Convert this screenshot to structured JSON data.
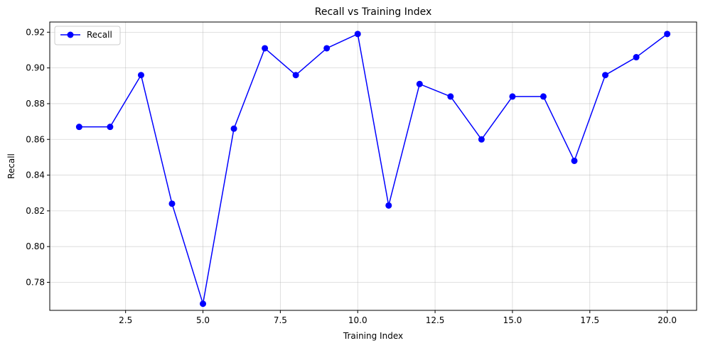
{
  "chart_data": {
    "type": "line",
    "title": "Recall vs Training Index",
    "xlabel": "Training Index",
    "ylabel": "Recall",
    "xlim": [
      0.05,
      20.95
    ],
    "ylim": [
      0.7643,
      0.9257
    ],
    "xticks": [
      2.5,
      5.0,
      7.5,
      10.0,
      12.5,
      15.0,
      17.5,
      20.0
    ],
    "xtick_labels": [
      "2.5",
      "5.0",
      "7.5",
      "10.0",
      "12.5",
      "15.0",
      "17.5",
      "20.0"
    ],
    "yticks": [
      0.78,
      0.8,
      0.82,
      0.84,
      0.86,
      0.88,
      0.9,
      0.92
    ],
    "ytick_labels": [
      "0.78",
      "0.80",
      "0.82",
      "0.84",
      "0.86",
      "0.88",
      "0.90",
      "0.92"
    ],
    "grid": true,
    "legend_position": "upper-left",
    "series": [
      {
        "name": "Recall",
        "color": "#0000ff",
        "marker": "circle",
        "x": [
          1,
          2,
          3,
          4,
          5,
          6,
          7,
          8,
          9,
          10,
          11,
          12,
          13,
          14,
          15,
          16,
          17,
          18,
          19,
          20
        ],
        "values": [
          0.867,
          0.867,
          0.896,
          0.824,
          0.768,
          0.866,
          0.911,
          0.896,
          0.911,
          0.919,
          0.823,
          0.891,
          0.884,
          0.86,
          0.884,
          0.884,
          0.848,
          0.896,
          0.906,
          0.919
        ]
      }
    ]
  }
}
